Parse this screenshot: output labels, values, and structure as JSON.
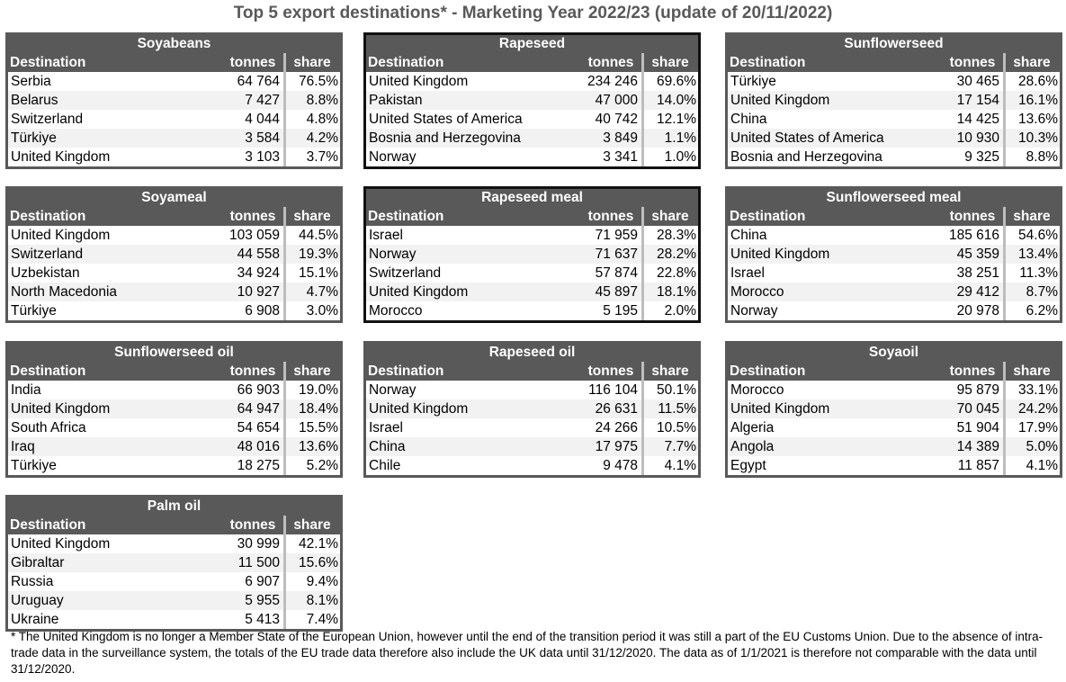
{
  "title": "Top 5 export destinations* - Marketing Year 2022/23 (update of 20/11/2022)",
  "headers": {
    "destination": "Destination",
    "tonnes": "tonnes",
    "share": "share"
  },
  "tables": [
    {
      "name": "Soyabeans",
      "rows": [
        [
          "Serbia",
          "64 764",
          "76.5%"
        ],
        [
          "Belarus",
          "7 427",
          "8.8%"
        ],
        [
          "Switzerland",
          "4 044",
          "4.8%"
        ],
        [
          "Türkiye",
          "3 584",
          "4.2%"
        ],
        [
          "United Kingdom",
          "3 103",
          "3.7%"
        ]
      ]
    },
    {
      "name": "Rapeseed",
      "rows": [
        [
          "United Kingdom",
          "234 246",
          "69.6%"
        ],
        [
          "Pakistan",
          "47 000",
          "14.0%"
        ],
        [
          "United States of America",
          "40 742",
          "12.1%"
        ],
        [
          "Bosnia and Herzegovina",
          "3 849",
          "1.1%"
        ],
        [
          "Norway",
          "3 341",
          "1.0%"
        ]
      ]
    },
    {
      "name": "Sunflowerseed",
      "rows": [
        [
          "Türkiye",
          "30 465",
          "28.6%"
        ],
        [
          "United Kingdom",
          "17 154",
          "16.1%"
        ],
        [
          "China",
          "14 425",
          "13.6%"
        ],
        [
          "United States of America",
          "10 930",
          "10.3%"
        ],
        [
          "Bosnia and Herzegovina",
          "9 325",
          "8.8%"
        ]
      ]
    },
    {
      "name": "Soyameal",
      "rows": [
        [
          "United Kingdom",
          "103 059",
          "44.5%"
        ],
        [
          "Switzerland",
          "44 558",
          "19.3%"
        ],
        [
          "Uzbekistan",
          "34 924",
          "15.1%"
        ],
        [
          "North Macedonia",
          "10 927",
          "4.7%"
        ],
        [
          "Türkiye",
          "6 908",
          "3.0%"
        ]
      ]
    },
    {
      "name": "Rapeseed meal",
      "rows": [
        [
          "Israel",
          "71 959",
          "28.3%"
        ],
        [
          "Norway",
          "71 637",
          "28.2%"
        ],
        [
          "Switzerland",
          "57 874",
          "22.8%"
        ],
        [
          "United Kingdom",
          "45 897",
          "18.1%"
        ],
        [
          "Morocco",
          "5 195",
          "2.0%"
        ]
      ]
    },
    {
      "name": "Sunflowerseed meal",
      "rows": [
        [
          "China",
          "185 616",
          "54.6%"
        ],
        [
          "United Kingdom",
          "45 359",
          "13.4%"
        ],
        [
          "Israel",
          "38 251",
          "11.3%"
        ],
        [
          "Morocco",
          "29 412",
          "8.7%"
        ],
        [
          "Norway",
          "20 978",
          "6.2%"
        ]
      ]
    },
    {
      "name": "Sunflowerseed oil",
      "rows": [
        [
          "India",
          "66 903",
          "19.0%"
        ],
        [
          "United Kingdom",
          "64 947",
          "18.4%"
        ],
        [
          "South Africa",
          "54 654",
          "15.5%"
        ],
        [
          "Iraq",
          "48 016",
          "13.6%"
        ],
        [
          "Türkiye",
          "18 275",
          "5.2%"
        ]
      ]
    },
    {
      "name": "Rapeseed oil",
      "rows": [
        [
          "Norway",
          "116 104",
          "50.1%"
        ],
        [
          "United Kingdom",
          "26 631",
          "11.5%"
        ],
        [
          "Israel",
          "24 266",
          "10.5%"
        ],
        [
          "China",
          "17 975",
          "7.7%"
        ],
        [
          "Chile",
          "9 478",
          "4.1%"
        ]
      ]
    },
    {
      "name": "Soyaoil",
      "rows": [
        [
          "Morocco",
          "95 879",
          "33.1%"
        ],
        [
          "United Kingdom",
          "70 045",
          "24.2%"
        ],
        [
          "Algeria",
          "51 904",
          "17.9%"
        ],
        [
          "Angola",
          "14 389",
          "5.0%"
        ],
        [
          "Egypt",
          "11 857",
          "4.1%"
        ]
      ]
    },
    {
      "name": "Palm oil",
      "rows": [
        [
          "United Kingdom",
          "30 999",
          "42.1%"
        ],
        [
          "Gibraltar",
          "11 500",
          "15.6%"
        ],
        [
          "Russia",
          "6 907",
          "9.4%"
        ],
        [
          "Uruguay",
          "5 955",
          "8.1%"
        ],
        [
          "Ukraine",
          "5 413",
          "7.4%"
        ]
      ]
    }
  ],
  "footnote": "* The United Kingdom is no longer a Member State of the European Union, however until the end of the transition period it was still a part of the EU Customs Union. Due to the absence of intra-trade data in the surveillance system, the totals of the EU trade data  therefore also include the UK data until 31/12/2020. The data as of 1/1/2021 is therefore not comparable with the data until 31/12/2020."
}
